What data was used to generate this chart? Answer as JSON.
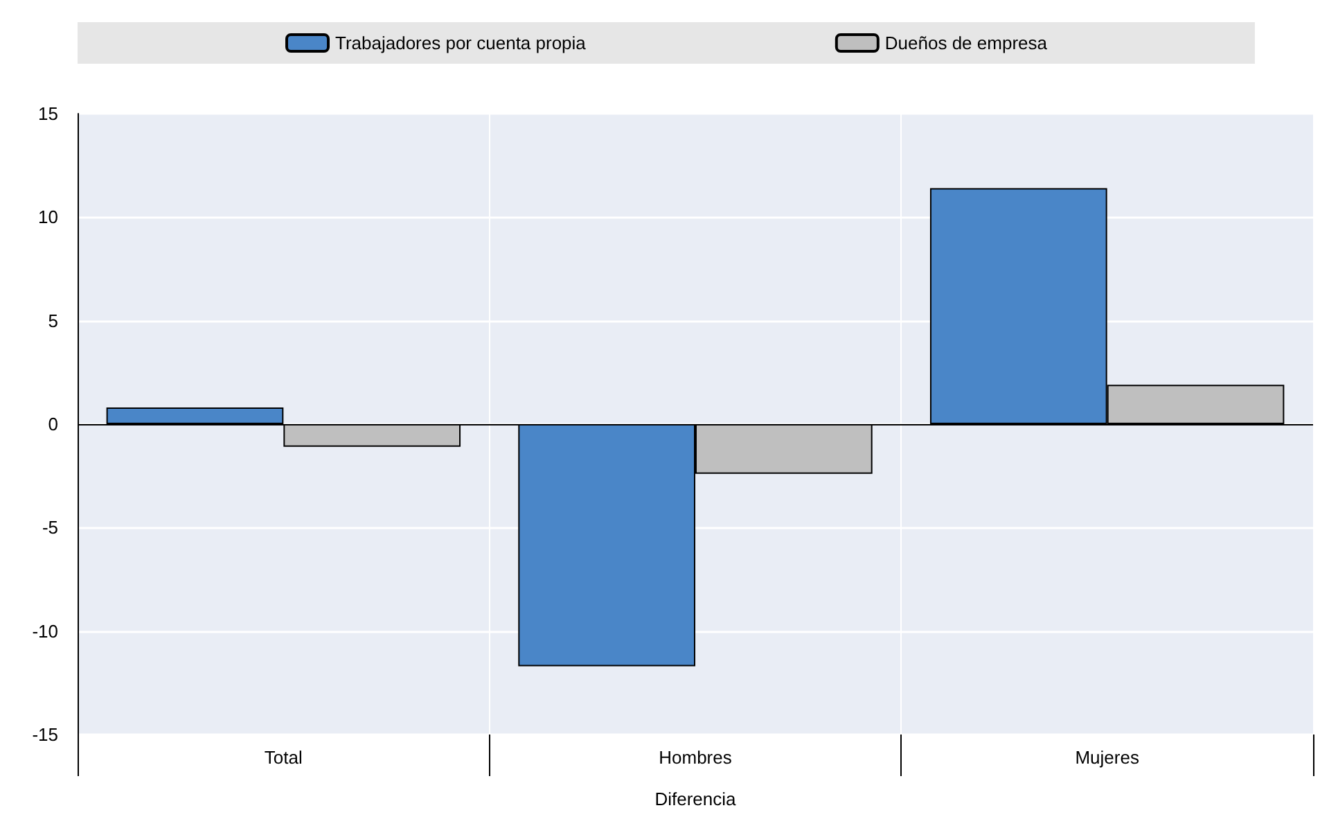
{
  "chart_data": {
    "type": "bar",
    "xlabel": "Diferencia",
    "categories": [
      "Total",
      "Hombres",
      "Mujeres"
    ],
    "series": [
      {
        "name": "Trabajadores por cuenta propia",
        "color": "#4a86c8",
        "values": [
          0.8,
          -11.7,
          11.4
        ]
      },
      {
        "name": "Dueños de empresa",
        "color": "#bfbfbf",
        "values": [
          -1.1,
          -2.4,
          1.9
        ]
      }
    ],
    "ylim": [
      -15,
      15
    ],
    "yticks": [
      -15,
      -10,
      -5,
      0,
      5,
      10,
      15
    ],
    "grid": true,
    "legend": "top"
  }
}
